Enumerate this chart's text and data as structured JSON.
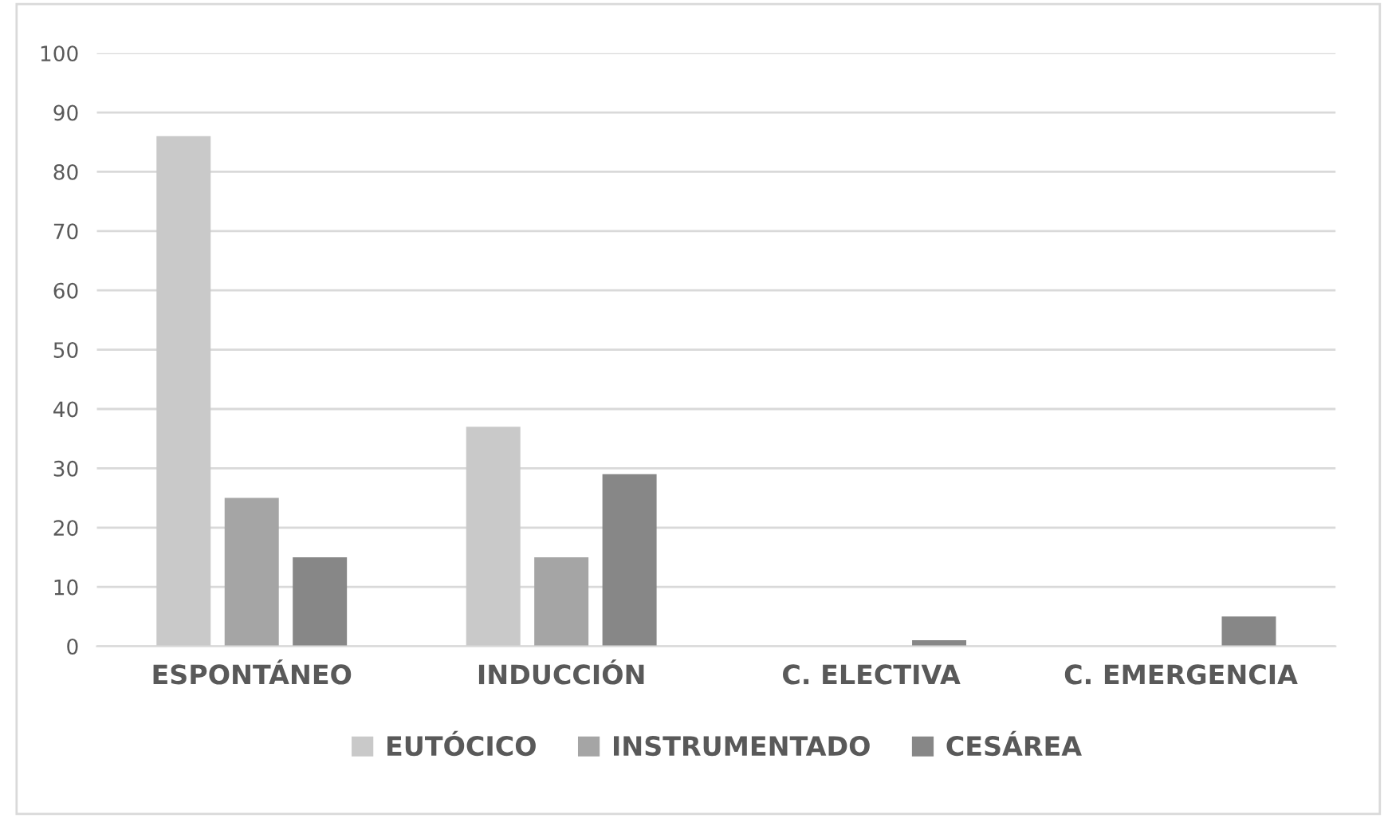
{
  "chart_data": {
    "type": "bar",
    "categories": [
      "ESPONTÁNEO",
      "INDUCCIÓN",
      "C. ELECTIVA",
      "C. EMERGENCIA"
    ],
    "series": [
      {
        "name": "EUTÓCICO",
        "color": "#c9c9c9",
        "values": [
          86,
          37,
          0,
          0
        ]
      },
      {
        "name": "INSTRUMENTADO",
        "color": "#a5a5a5",
        "values": [
          25,
          15,
          0,
          0
        ]
      },
      {
        "name": "CESÁREA",
        "color": "#878787",
        "values": [
          15,
          29,
          1,
          5
        ]
      }
    ],
    "ylim": [
      0,
      100
    ],
    "yticks": [
      0,
      10,
      20,
      30,
      40,
      50,
      60,
      70,
      80,
      90,
      100
    ],
    "grid": "y",
    "legend": "bottom"
  }
}
